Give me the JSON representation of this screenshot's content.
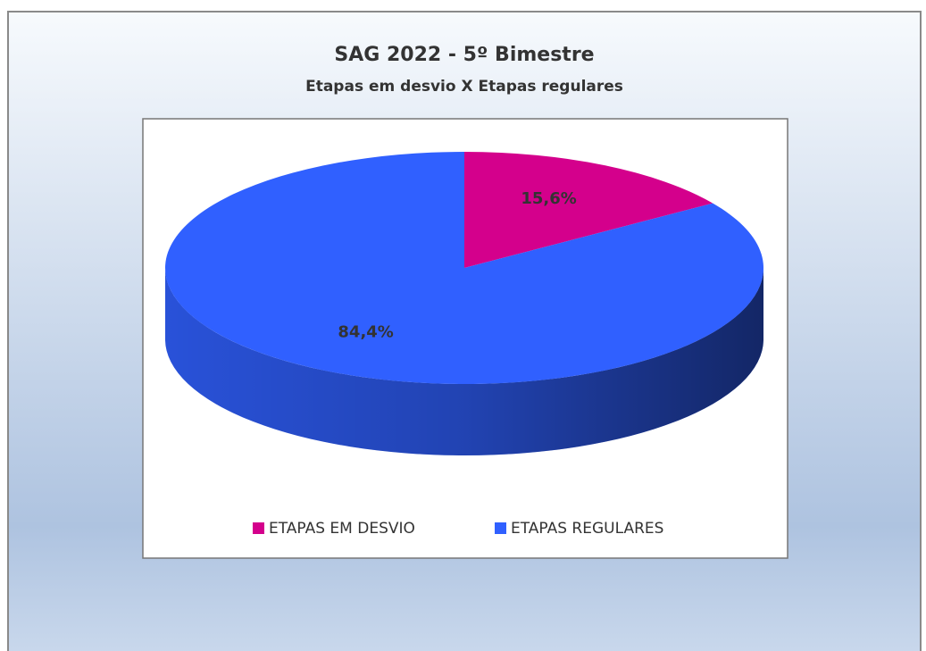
{
  "chart_data": {
    "type": "pie",
    "title": "SAG 2022 - 5º Bimestre",
    "subtitle": "Etapas em desvio X Etapas regulares",
    "categories": [
      "ETAPAS EM DESVIO",
      "ETAPAS REGULARES"
    ],
    "values": [
      15.6,
      84.4
    ],
    "value_labels": [
      "15,6%",
      "84,4%"
    ],
    "colors": [
      "#d4008c",
      "#3060ff"
    ],
    "legend": "bottom"
  }
}
